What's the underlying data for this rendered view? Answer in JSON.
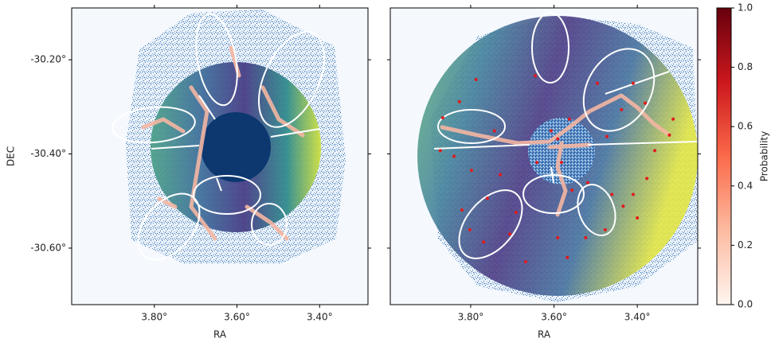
{
  "chart_data": [
    {
      "type": "image",
      "xlabel": "RA",
      "ylabel": "DEC",
      "xlim": [
        4.0,
        3.283
      ],
      "ylim": [
        -30.72,
        -30.09
      ],
      "xticks": [
        {
          "value": 3.8,
          "label": "3.80°"
        },
        {
          "value": 3.6,
          "label": "3.60°"
        },
        {
          "value": 3.4,
          "label": "3.40°"
        }
      ],
      "yticks": [
        {
          "value": -30.2,
          "label": "-30.20°"
        },
        {
          "value": -30.4,
          "label": "-30.40°"
        },
        {
          "value": -30.6,
          "label": "-30.60°"
        }
      ]
    },
    {
      "type": "scatter",
      "xlabel": "RA",
      "xlim": [
        3.993,
        3.255
      ],
      "ylim": [
        -30.72,
        -30.09
      ],
      "xticks": [
        {
          "value": 3.8,
          "label": "3.80°"
        },
        {
          "value": 3.6,
          "label": "3.60°"
        },
        {
          "value": 3.4,
          "label": "3.40°"
        }
      ],
      "color": "#e3191c",
      "x": [
        3.787,
        3.827,
        3.867,
        3.873,
        3.84,
        3.798,
        3.743,
        3.729,
        3.76,
        3.821,
        3.802,
        3.769,
        3.706,
        3.668,
        3.691,
        3.591,
        3.568,
        3.524,
        3.477,
        3.434,
        3.4,
        3.41,
        3.377,
        3.358,
        3.323,
        3.314,
        3.381,
        3.41,
        3.438,
        3.496,
        3.519,
        3.461,
        3.591,
        3.582,
        3.557,
        3.473,
        3.607,
        3.563,
        3.645,
        3.641
      ],
      "y": [
        -30.242,
        -30.289,
        -30.323,
        -30.393,
        -30.405,
        -30.435,
        -30.351,
        -30.444,
        -30.494,
        -30.519,
        -30.561,
        -30.587,
        -30.57,
        -30.629,
        -30.524,
        -30.578,
        -30.62,
        -30.578,
        -30.561,
        -30.511,
        -30.536,
        -30.486,
        -30.452,
        -30.393,
        -30.36,
        -30.326,
        -30.292,
        -30.25,
        -30.306,
        -30.25,
        -30.461,
        -30.486,
        -30.368,
        -30.418,
        -30.477,
        -30.363,
        -30.351,
        -30.326,
        -30.234,
        -30.418
      ],
      "colorbar": {
        "label": "Probability",
        "colormap": [
          "#fff5f0",
          "#fcbba1",
          "#fb6a4a",
          "#cb181d",
          "#67000d"
        ],
        "lim": [
          0,
          1
        ],
        "ticks": [
          {
            "value": 0,
            "label": "0.0"
          },
          0.2,
          0.4,
          0.6,
          0.8,
          {
            "value": 1,
            "label": "1.0"
          }
        ]
      }
    }
  ]
}
